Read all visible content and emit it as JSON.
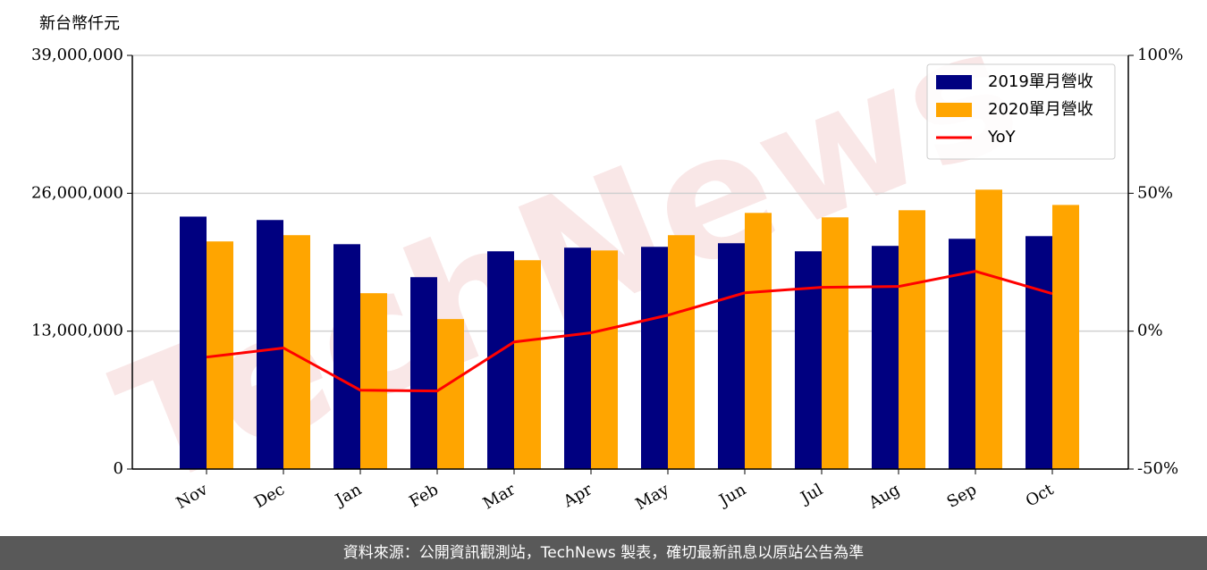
{
  "chart_data": {
    "type": "bar",
    "ylabel": "新台幣仟元",
    "watermark": "TechNews",
    "categories": [
      "Nov",
      "Dec",
      "Jan",
      "Feb",
      "Mar",
      "Apr",
      "May",
      "Jun",
      "Jul",
      "Aug",
      "Sep",
      "Oct"
    ],
    "series": [
      {
        "name": "2019單月營收",
        "color": "#000080",
        "type": "bar",
        "values": [
          23800000,
          23480000,
          21200000,
          18090000,
          20530000,
          20870000,
          20950000,
          21290000,
          20530000,
          21040000,
          21710000,
          21960000
        ]
      },
      {
        "name": "2020單月營收",
        "color": "#ffa500",
        "type": "bar",
        "values": [
          21460000,
          22050000,
          16580000,
          14140000,
          19690000,
          20610000,
          22050000,
          24150000,
          23730000,
          24400000,
          26340000,
          24900000
        ]
      },
      {
        "name": "YoY",
        "color": "#ff0000",
        "type": "line",
        "axis": "y2",
        "values": [
          -9.4,
          -6.1,
          -21.4,
          -21.7,
          -3.9,
          -0.6,
          5.8,
          13.9,
          15.9,
          16.2,
          21.7,
          13.6
        ]
      }
    ],
    "ylim": [
      0,
      39000000
    ],
    "yticks": [
      0,
      {
        "value": 13000000,
        "label": "13,000,000"
      },
      {
        "value": 26000000,
        "label": "26,000,000"
      },
      {
        "value": 39000000,
        "label": "39,000,000"
      }
    ],
    "y2lim": [
      -50,
      100
    ],
    "y2ticks": [
      {
        "value": -50,
        "label": "-50%"
      },
      {
        "value": 0,
        "label": "0%"
      },
      {
        "value": 50,
        "label": "50%"
      },
      {
        "value": 100,
        "label": "100%"
      }
    ],
    "grid": true,
    "legend": "upper-right",
    "source": "資料來源：公開資訊觀測站，TechNews 製表，確切最新訊息以原站公告為準"
  }
}
